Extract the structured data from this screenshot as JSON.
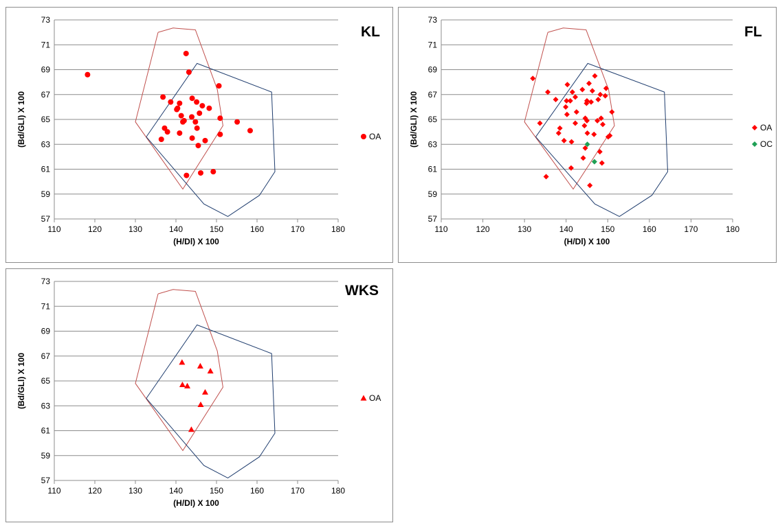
{
  "colors": {
    "oa": "#ff0000",
    "oc": "#1fa055",
    "hull_red": "#c0504d",
    "hull_blue": "#1f3d6e",
    "grid": "#8c8c8c"
  },
  "chart_data": [
    {
      "id": "kl",
      "type": "scatter",
      "title": "KL",
      "xlabel": "(H/Dl) X 100",
      "ylabel": "(Bd/GLl) X 100",
      "xlim": [
        110,
        180
      ],
      "ylim": [
        57,
        73
      ],
      "xticks": [
        110,
        120,
        130,
        140,
        150,
        160,
        170,
        180
      ],
      "yticks": [
        57,
        59,
        61,
        63,
        65,
        67,
        69,
        71,
        73
      ],
      "grid": "horizontal",
      "legend_position": "right",
      "marker": "circle",
      "hulls": [
        {
          "color": "red",
          "points": [
            [
              135.6,
              72.0
            ],
            [
              139.3,
              72.35
            ],
            [
              144.8,
              72.2
            ],
            [
              150.2,
              67.4
            ],
            [
              151.6,
              64.5
            ],
            [
              141.7,
              59.4
            ],
            [
              130.0,
              64.8
            ],
            [
              135.6,
              72.0
            ]
          ]
        },
        {
          "color": "blue",
          "points": [
            [
              132.7,
              63.6
            ],
            [
              145.2,
              69.5
            ],
            [
              163.6,
              67.2
            ],
            [
              164.4,
              60.8
            ],
            [
              160.6,
              58.9
            ],
            [
              152.8,
              57.2
            ],
            [
              146.9,
              58.2
            ],
            [
              132.7,
              63.6
            ]
          ]
        }
      ],
      "series": [
        {
          "name": "OA",
          "color": "oa",
          "points": [
            [
              118.2,
              68.6
            ],
            [
              142.5,
              70.3
            ],
            [
              143.2,
              68.8
            ],
            [
              150.6,
              67.7
            ],
            [
              136.8,
              66.8
            ],
            [
              138.7,
              66.4
            ],
            [
              144.0,
              66.7
            ],
            [
              145.1,
              66.4
            ],
            [
              146.5,
              66.1
            ],
            [
              148.2,
              65.9
            ],
            [
              140.2,
              65.8
            ],
            [
              140.4,
              65.9
            ],
            [
              140.9,
              66.3
            ],
            [
              141.3,
              65.3
            ],
            [
              143.9,
              65.2
            ],
            [
              145.8,
              65.5
            ],
            [
              150.9,
              65.1
            ],
            [
              155.1,
              64.8
            ],
            [
              158.3,
              64.1
            ],
            [
              141.7,
              64.8
            ],
            [
              142.0,
              64.9
            ],
            [
              144.8,
              64.8
            ],
            [
              137.2,
              64.3
            ],
            [
              137.9,
              64.0
            ],
            [
              140.9,
              63.9
            ],
            [
              145.2,
              64.3
            ],
            [
              150.9,
              63.8
            ],
            [
              136.4,
              63.4
            ],
            [
              144.0,
              63.5
            ],
            [
              147.2,
              63.3
            ],
            [
              145.5,
              62.9
            ],
            [
              146.1,
              60.7
            ],
            [
              149.2,
              60.8
            ],
            [
              142.6,
              60.5
            ]
          ]
        }
      ]
    },
    {
      "id": "fl",
      "type": "scatter",
      "title": "FL",
      "xlabel": "(H/Dl) X 100",
      "ylabel": "(Bd/GLl) X 100",
      "xlim": [
        110,
        180
      ],
      "ylim": [
        57,
        73
      ],
      "xticks": [
        110,
        120,
        130,
        140,
        150,
        160,
        170,
        180
      ],
      "yticks": [
        57,
        59,
        61,
        63,
        65,
        67,
        69,
        71,
        73
      ],
      "grid": "horizontal",
      "legend_position": "right",
      "marker": "diamond",
      "hulls": [
        {
          "color": "red",
          "points": [
            [
              135.6,
              72.0
            ],
            [
              139.3,
              72.35
            ],
            [
              144.8,
              72.2
            ],
            [
              150.2,
              67.4
            ],
            [
              151.6,
              64.5
            ],
            [
              141.7,
              59.4
            ],
            [
              130.0,
              64.8
            ],
            [
              135.6,
              72.0
            ]
          ]
        },
        {
          "color": "blue",
          "points": [
            [
              132.7,
              63.6
            ],
            [
              145.2,
              69.5
            ],
            [
              163.6,
              67.2
            ],
            [
              164.4,
              60.8
            ],
            [
              160.6,
              58.9
            ],
            [
              152.8,
              57.2
            ],
            [
              146.9,
              58.2
            ],
            [
              132.7,
              63.6
            ]
          ]
        }
      ],
      "series": [
        {
          "name": "OA",
          "color": "oa",
          "points": [
            [
              132.0,
              68.3
            ],
            [
              146.9,
              68.5
            ],
            [
              140.3,
              67.8
            ],
            [
              145.5,
              67.9
            ],
            [
              135.6,
              67.2
            ],
            [
              143.9,
              67.4
            ],
            [
              146.3,
              67.3
            ],
            [
              149.6,
              67.5
            ],
            [
              141.5,
              67.2
            ],
            [
              142.2,
              66.8
            ],
            [
              148.2,
              67.0
            ],
            [
              149.4,
              66.9
            ],
            [
              137.5,
              66.6
            ],
            [
              140.1,
              66.5
            ],
            [
              141.0,
              66.5
            ],
            [
              145.0,
              66.5
            ],
            [
              146.0,
              66.4
            ],
            [
              147.7,
              66.6
            ],
            [
              139.9,
              66.0
            ],
            [
              142.5,
              65.6
            ],
            [
              144.9,
              66.3
            ],
            [
              151.0,
              65.6
            ],
            [
              133.7,
              64.7
            ],
            [
              140.2,
              65.4
            ],
            [
              144.6,
              65.1
            ],
            [
              148.4,
              65.1
            ],
            [
              145.0,
              64.9
            ],
            [
              147.5,
              64.9
            ],
            [
              142.2,
              64.7
            ],
            [
              144.4,
              64.5
            ],
            [
              148.8,
              64.6
            ],
            [
              138.5,
              64.3
            ],
            [
              138.2,
              63.9
            ],
            [
              146.7,
              63.8
            ],
            [
              145.1,
              63.9
            ],
            [
              150.1,
              63.6
            ],
            [
              150.5,
              63.7
            ],
            [
              139.5,
              63.3
            ],
            [
              141.3,
              63.2
            ],
            [
              144.6,
              62.7
            ],
            [
              148.1,
              62.4
            ],
            [
              144.1,
              61.9
            ],
            [
              148.6,
              61.5
            ],
            [
              141.2,
              61.1
            ],
            [
              135.2,
              60.4
            ],
            [
              145.7,
              59.7
            ]
          ]
        },
        {
          "name": "OC",
          "color": "oc",
          "points": [
            [
              145.1,
              63.0
            ],
            [
              146.8,
              61.6
            ]
          ]
        }
      ]
    },
    {
      "id": "wks",
      "type": "scatter",
      "title": "WKS",
      "xlabel": "(H/Dl) X 100",
      "ylabel": "(Bd/GLl) X 100",
      "xlim": [
        110,
        180
      ],
      "ylim": [
        57,
        73
      ],
      "xticks": [
        110,
        120,
        130,
        140,
        150,
        160,
        170,
        180
      ],
      "yticks": [
        57,
        59,
        61,
        63,
        65,
        67,
        69,
        71,
        73
      ],
      "grid": "horizontal",
      "legend_position": "right",
      "marker": "triangle",
      "hulls": [
        {
          "color": "red",
          "points": [
            [
              135.6,
              72.0
            ],
            [
              139.3,
              72.35
            ],
            [
              144.8,
              72.2
            ],
            [
              150.2,
              67.4
            ],
            [
              151.6,
              64.5
            ],
            [
              141.7,
              59.4
            ],
            [
              130.0,
              64.8
            ],
            [
              135.6,
              72.0
            ]
          ]
        },
        {
          "color": "blue",
          "points": [
            [
              132.7,
              63.6
            ],
            [
              145.2,
              69.5
            ],
            [
              163.6,
              67.2
            ],
            [
              164.4,
              60.8
            ],
            [
              160.6,
              58.9
            ],
            [
              152.8,
              57.2
            ],
            [
              146.9,
              58.2
            ],
            [
              132.7,
              63.6
            ]
          ]
        }
      ],
      "series": [
        {
          "name": "OA",
          "color": "oa",
          "points": [
            [
              141.5,
              66.5
            ],
            [
              146.0,
              66.2
            ],
            [
              148.5,
              65.8
            ],
            [
              141.6,
              64.7
            ],
            [
              142.8,
              64.6
            ],
            [
              147.2,
              64.1
            ],
            [
              146.1,
              63.1
            ],
            [
              143.8,
              61.1
            ]
          ]
        }
      ]
    }
  ]
}
